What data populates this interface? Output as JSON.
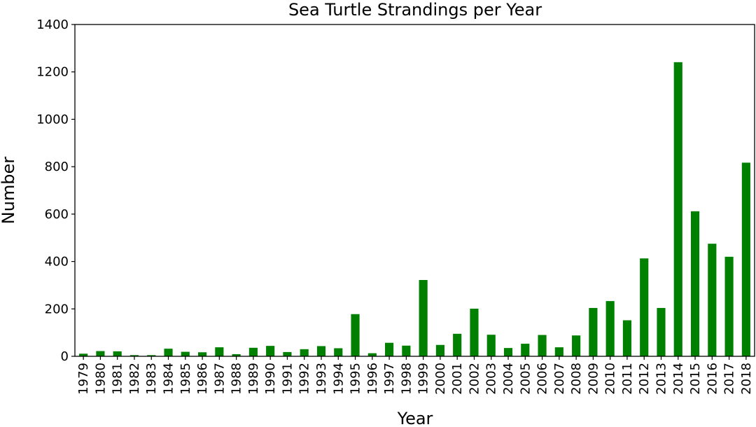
{
  "chart_data": {
    "type": "bar",
    "title": "Sea Turtle Strandings per Year",
    "xlabel": "Year",
    "ylabel": "Number",
    "ylim": [
      0,
      1400
    ],
    "yticks": [
      0,
      200,
      400,
      600,
      800,
      1000,
      1200,
      1400
    ],
    "grid": false,
    "bar_color": "#008000",
    "categories": [
      "1979",
      "1980",
      "1981",
      "1982",
      "1983",
      "1984",
      "1985",
      "1986",
      "1987",
      "1988",
      "1989",
      "1990",
      "1991",
      "1992",
      "1993",
      "1994",
      "1995",
      "1996",
      "1997",
      "1998",
      "1999",
      "2000",
      "2001",
      "2002",
      "2003",
      "2004",
      "2005",
      "2006",
      "2007",
      "2008",
      "2009",
      "2010",
      "2011",
      "2012",
      "2013",
      "2014",
      "2015",
      "2016",
      "2017",
      "2018"
    ],
    "values": [
      11,
      22,
      21,
      5,
      5,
      32,
      19,
      17,
      38,
      9,
      36,
      44,
      18,
      30,
      43,
      34,
      178,
      13,
      57,
      45,
      322,
      48,
      95,
      201,
      91,
      35,
      53,
      90,
      38,
      88,
      204,
      233,
      152,
      413,
      204,
      1241,
      612,
      475,
      420,
      817
    ]
  }
}
